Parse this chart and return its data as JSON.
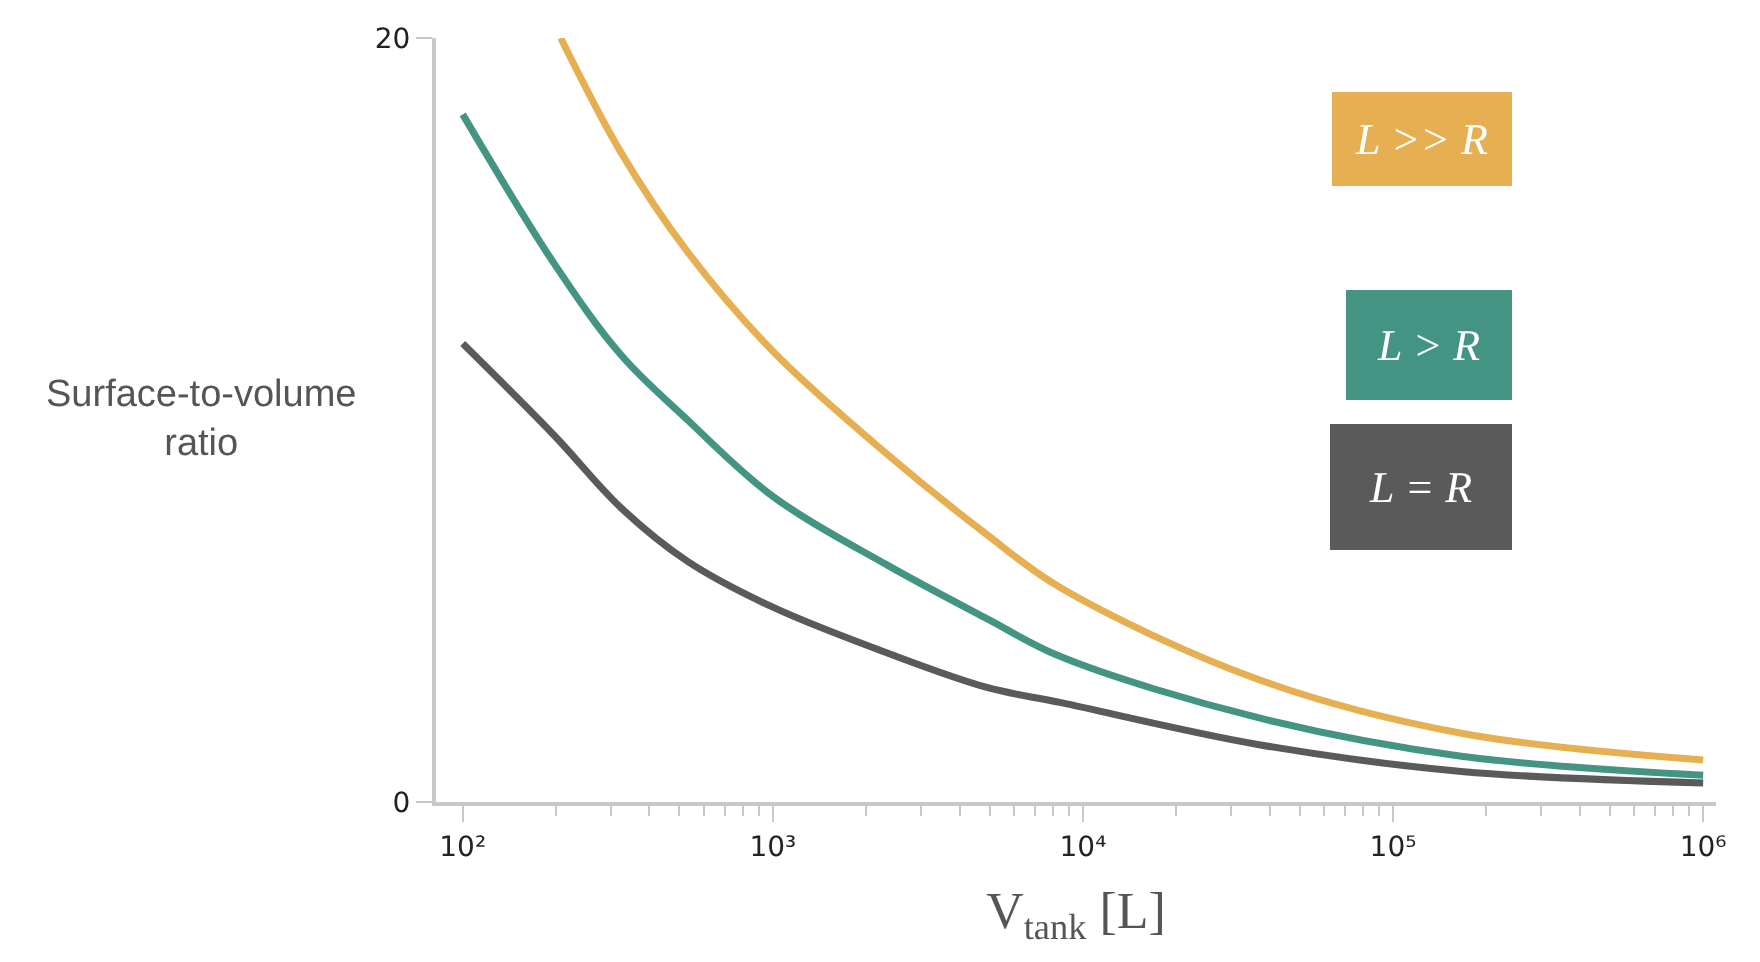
{
  "chart_data": {
    "type": "line",
    "xlabel": "V$_{tank}$ [L]",
    "ylabel": "Surface-to-volume ratio",
    "log": "x",
    "xlim": [
      82,
      1100000
    ],
    "ylim": [
      0,
      20
    ],
    "xticks": [
      {
        "value": 100,
        "label": "10²"
      },
      {
        "value": 1000,
        "label": "10³"
      },
      {
        "value": 10000,
        "label": "10⁴"
      },
      {
        "value": 100000,
        "label": "10⁵"
      },
      {
        "value": 1000000,
        "label": "10⁶"
      }
    ],
    "yticks": [
      0,
      20
    ],
    "legend": false,
    "marker": "none",
    "line_style": "solid",
    "series": [
      {
        "name": "L >> R",
        "color": "#e6b052",
        "x": [
          207,
          324,
          531,
          1000,
          2340,
          4900,
          8500,
          37000,
          166000,
          1000000
        ],
        "values": [
          20,
          17.0,
          14.4,
          11.8,
          9.1,
          7.0,
          5.6,
          3.2,
          1.8,
          1.1
        ]
      },
      {
        "name": "L > R",
        "color": "#449484",
        "x": [
          100,
          197,
          324,
          531,
          1000,
          2340,
          4900,
          8500,
          37000,
          166000,
          1000000
        ],
        "values": [
          18.0,
          14.1,
          11.7,
          10.0,
          8.0,
          6.2,
          4.8,
          3.8,
          2.2,
          1.2,
          0.7
        ]
      },
      {
        "name": "L = R",
        "color": "#5a5a5a",
        "x": [
          100,
          197,
          324,
          531,
          1000,
          2340,
          4900,
          8500,
          37000,
          166000,
          1000000
        ],
        "values": [
          12.0,
          9.6,
          7.7,
          6.3,
          5.1,
          3.9,
          3.0,
          2.6,
          1.5,
          0.8,
          0.5
        ]
      }
    ]
  }
}
